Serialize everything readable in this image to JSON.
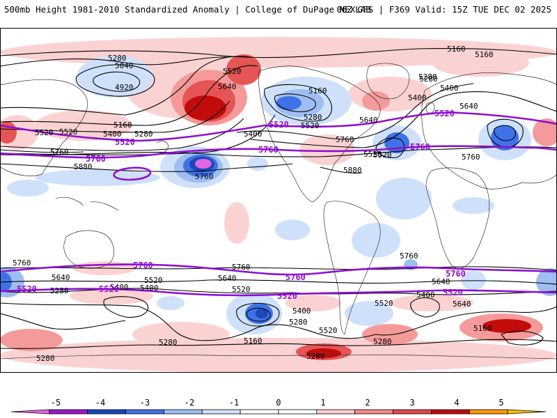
{
  "header": {
    "title_left": "500mb Height 1981-2010 Standardized Anomaly | College of DuPage NEXLAB",
    "title_right": "06Z GFS | F369 Valid: 15Z TUE DEC 02 2025"
  },
  "map": {
    "variable": "500mb Height Standardized Anomaly",
    "model": "GFS",
    "run": "06Z",
    "forecast_hour": "F369",
    "valid": "15Z TUE DEC 02 2025",
    "contour_labels_black": [
      "5280",
      "5040",
      "4920",
      "5640",
      "5520",
      "5160",
      "5400",
      "5280",
      "5160",
      "5280",
      "5520",
      "5400",
      "5760",
      "5880",
      "5760",
      "5280",
      "5160",
      "5400",
      "5640",
      "5520",
      "5160",
      "5280",
      "5640",
      "5520",
      "5400",
      "5520",
      "5760",
      "5520",
      "5880",
      "5400",
      "5640",
      "5760",
      "5760",
      "5640",
      "5280",
      "5760",
      "5520",
      "5400",
      "5760",
      "5640",
      "5520",
      "5400",
      "5520",
      "5280",
      "5160",
      "5280",
      "5280",
      "5520",
      "5280",
      "5400",
      "5640",
      "5160",
      "5280"
    ],
    "contour_labels_purple": [
      "5520",
      "5760",
      "5520",
      "5520",
      "5760",
      "5760",
      "5520",
      "5760",
      "5760",
      "5520",
      "5520",
      "5520",
      "5760"
    ]
  },
  "colorbar": {
    "ticks": [
      "-5",
      "-4",
      "-3",
      "-2",
      "-1",
      "0",
      "1",
      "2",
      "3",
      "4",
      "5"
    ],
    "colors": [
      "#e266e0",
      "#9c18c8",
      "#1648b8",
      "#3f72e6",
      "#9ebff4",
      "#cfe0fb",
      "#ffffff",
      "#ffffff",
      "#fbd0d0",
      "#f58a8a",
      "#e74848",
      "#c40a0a",
      "#ff9a00",
      "#ffc000"
    ]
  },
  "palette": {
    "pos1": "#fbd2d2",
    "pos2": "#f59a9a",
    "pos3": "#e55555",
    "pos4": "#c20c0c",
    "neg1": "#cfe0fa",
    "neg2": "#9ebef2",
    "neg3": "#3f72e6",
    "neg4": "#1a48b8",
    "neg5": "#9c18c8",
    "neg6": "#e266e0",
    "purple": "#8e0fcf",
    "contour": "#000000"
  }
}
